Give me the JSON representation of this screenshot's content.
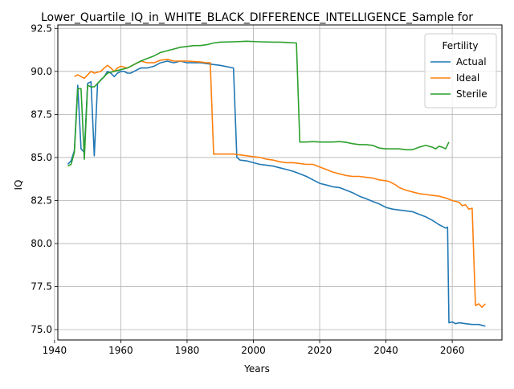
{
  "chart_data": {
    "type": "line",
    "title": "Lower_Quartile_IQ_in_WHITE_BLACK_DIFFERENCE_INTELLIGENCE_Sample for",
    "xlabel": "Years",
    "ylabel": "IQ",
    "xlim": [
      1941,
      2075
    ],
    "ylim": [
      74.4,
      92.7
    ],
    "xticks": [
      1940,
      1960,
      1980,
      2000,
      2020,
      2040,
      2060
    ],
    "yticks": [
      75.0,
      77.5,
      80.0,
      82.5,
      85.0,
      87.5,
      90.0,
      92.5
    ],
    "xtick_labels": [
      "1940",
      "1960",
      "1980",
      "2000",
      "2020",
      "2040",
      "2060"
    ],
    "ytick_labels": [
      "75.0",
      "77.5",
      "80.0",
      "82.5",
      "85.0",
      "87.5",
      "90.0",
      "92.5"
    ],
    "grid": true,
    "legend": {
      "title": "Fertility",
      "position": "upper right"
    },
    "series": [
      {
        "name": "Actual",
        "color": "#1f77b4",
        "points": [
          [
            1944,
            84.6
          ],
          [
            1945,
            84.8
          ],
          [
            1946,
            85.4
          ],
          [
            1947,
            89.2
          ],
          [
            1948,
            85.5
          ],
          [
            1949,
            85.3
          ],
          [
            1950,
            89.3
          ],
          [
            1951,
            89.4
          ],
          [
            1952,
            85.1
          ],
          [
            1953,
            89.3
          ],
          [
            1954,
            89.5
          ],
          [
            1955,
            89.7
          ],
          [
            1956,
            90.0
          ],
          [
            1957,
            89.9
          ],
          [
            1958,
            89.7
          ],
          [
            1959,
            89.9
          ],
          [
            1960,
            90.0
          ],
          [
            1961,
            90.0
          ],
          [
            1962,
            89.9
          ],
          [
            1963,
            89.9
          ],
          [
            1964,
            90.0
          ],
          [
            1965,
            90.1
          ],
          [
            1966,
            90.2
          ],
          [
            1968,
            90.2
          ],
          [
            1970,
            90.3
          ],
          [
            1972,
            90.5
          ],
          [
            1974,
            90.6
          ],
          [
            1976,
            90.5
          ],
          [
            1978,
            90.6
          ],
          [
            1980,
            90.5
          ],
          [
            1984,
            90.5
          ],
          [
            1988,
            90.4
          ],
          [
            1990,
            90.35
          ],
          [
            1994,
            90.2
          ],
          [
            1995,
            85.0
          ],
          [
            1996,
            84.85
          ],
          [
            1998,
            84.8
          ],
          [
            2000,
            84.7
          ],
          [
            2002,
            84.6
          ],
          [
            2004,
            84.55
          ],
          [
            2006,
            84.5
          ],
          [
            2008,
            84.4
          ],
          [
            2010,
            84.3
          ],
          [
            2012,
            84.2
          ],
          [
            2014,
            84.05
          ],
          [
            2016,
            83.9
          ],
          [
            2018,
            83.7
          ],
          [
            2020,
            83.5
          ],
          [
            2022,
            83.4
          ],
          [
            2024,
            83.3
          ],
          [
            2026,
            83.25
          ],
          [
            2028,
            83.1
          ],
          [
            2030,
            82.95
          ],
          [
            2032,
            82.75
          ],
          [
            2034,
            82.6
          ],
          [
            2036,
            82.45
          ],
          [
            2038,
            82.3
          ],
          [
            2040,
            82.1
          ],
          [
            2042,
            82.0
          ],
          [
            2044,
            81.95
          ],
          [
            2046,
            81.9
          ],
          [
            2048,
            81.85
          ],
          [
            2050,
            81.7
          ],
          [
            2052,
            81.55
          ],
          [
            2054,
            81.35
          ],
          [
            2056,
            81.1
          ],
          [
            2057,
            81.0
          ],
          [
            2058,
            80.9
          ],
          [
            2058.6,
            80.95
          ],
          [
            2059,
            75.4
          ],
          [
            2060,
            75.45
          ],
          [
            2061,
            75.35
          ],
          [
            2062,
            75.4
          ],
          [
            2064,
            75.35
          ],
          [
            2066,
            75.3
          ],
          [
            2068,
            75.3
          ],
          [
            2069,
            75.25
          ],
          [
            2070,
            75.2
          ]
        ]
      },
      {
        "name": "Ideal",
        "color": "#ff7f0e",
        "points": [
          [
            1946,
            89.7
          ],
          [
            1947,
            89.8
          ],
          [
            1948,
            89.7
          ],
          [
            1949,
            89.6
          ],
          [
            1950,
            89.8
          ],
          [
            1951,
            90.0
          ],
          [
            1952,
            89.9
          ],
          [
            1953,
            89.95
          ],
          [
            1954,
            90.0
          ],
          [
            1955,
            90.2
          ],
          [
            1956,
            90.35
          ],
          [
            1957,
            90.2
          ],
          [
            1958,
            90.0
          ],
          [
            1959,
            90.2
          ],
          [
            1960,
            90.3
          ],
          [
            1962,
            90.2
          ],
          [
            1964,
            90.4
          ],
          [
            1966,
            90.6
          ],
          [
            1968,
            90.5
          ],
          [
            1970,
            90.5
          ],
          [
            1972,
            90.65
          ],
          [
            1974,
            90.7
          ],
          [
            1976,
            90.6
          ],
          [
            1978,
            90.6
          ],
          [
            1980,
            90.6
          ],
          [
            1984,
            90.55
          ],
          [
            1986,
            90.5
          ],
          [
            1987,
            90.5
          ],
          [
            1988,
            85.2
          ],
          [
            1990,
            85.2
          ],
          [
            1992,
            85.2
          ],
          [
            1994,
            85.2
          ],
          [
            1996,
            85.15
          ],
          [
            1998,
            85.1
          ],
          [
            2000,
            85.05
          ],
          [
            2002,
            85.0
          ],
          [
            2004,
            84.9
          ],
          [
            2006,
            84.85
          ],
          [
            2008,
            84.75
          ],
          [
            2010,
            84.7
          ],
          [
            2012,
            84.7
          ],
          [
            2014,
            84.65
          ],
          [
            2016,
            84.6
          ],
          [
            2018,
            84.6
          ],
          [
            2020,
            84.45
          ],
          [
            2022,
            84.3
          ],
          [
            2024,
            84.15
          ],
          [
            2026,
            84.05
          ],
          [
            2028,
            83.95
          ],
          [
            2030,
            83.9
          ],
          [
            2032,
            83.9
          ],
          [
            2034,
            83.85
          ],
          [
            2036,
            83.8
          ],
          [
            2038,
            83.7
          ],
          [
            2040,
            83.65
          ],
          [
            2041,
            83.6
          ],
          [
            2042,
            83.5
          ],
          [
            2043,
            83.4
          ],
          [
            2044,
            83.25
          ],
          [
            2046,
            83.1
          ],
          [
            2048,
            83.0
          ],
          [
            2050,
            82.9
          ],
          [
            2052,
            82.85
          ],
          [
            2054,
            82.8
          ],
          [
            2056,
            82.75
          ],
          [
            2058,
            82.65
          ],
          [
            2060,
            82.5
          ],
          [
            2062,
            82.4
          ],
          [
            2063,
            82.2
          ],
          [
            2064,
            82.25
          ],
          [
            2065,
            82.0
          ],
          [
            2066,
            82.05
          ],
          [
            2067,
            76.4
          ],
          [
            2068,
            76.5
          ],
          [
            2069,
            76.3
          ],
          [
            2070,
            76.5
          ]
        ]
      },
      {
        "name": "Sterile",
        "color": "#2ca02c",
        "points": [
          [
            1944,
            84.5
          ],
          [
            1945,
            84.6
          ],
          [
            1946,
            85.3
          ],
          [
            1947,
            89.0
          ],
          [
            1948,
            89.0
          ],
          [
            1949,
            84.9
          ],
          [
            1950,
            89.2
          ],
          [
            1951,
            89.1
          ],
          [
            1952,
            89.1
          ],
          [
            1953,
            89.3
          ],
          [
            1954,
            89.5
          ],
          [
            1955,
            89.7
          ],
          [
            1956,
            89.9
          ],
          [
            1957,
            89.95
          ],
          [
            1958,
            90.0
          ],
          [
            1960,
            90.1
          ],
          [
            1962,
            90.2
          ],
          [
            1964,
            90.4
          ],
          [
            1966,
            90.6
          ],
          [
            1968,
            90.75
          ],
          [
            1970,
            90.9
          ],
          [
            1972,
            91.1
          ],
          [
            1974,
            91.2
          ],
          [
            1976,
            91.3
          ],
          [
            1978,
            91.4
          ],
          [
            1980,
            91.45
          ],
          [
            1982,
            91.5
          ],
          [
            1984,
            91.5
          ],
          [
            1986,
            91.55
          ],
          [
            1988,
            91.65
          ],
          [
            1990,
            91.7
          ],
          [
            1994,
            91.72
          ],
          [
            1998,
            91.75
          ],
          [
            2002,
            91.72
          ],
          [
            2006,
            91.7
          ],
          [
            2008,
            91.7
          ],
          [
            2010,
            91.68
          ],
          [
            2013,
            91.65
          ],
          [
            2014,
            85.9
          ],
          [
            2016,
            85.9
          ],
          [
            2018,
            85.92
          ],
          [
            2020,
            85.9
          ],
          [
            2022,
            85.9
          ],
          [
            2024,
            85.9
          ],
          [
            2026,
            85.92
          ],
          [
            2028,
            85.88
          ],
          [
            2030,
            85.8
          ],
          [
            2032,
            85.75
          ],
          [
            2034,
            85.75
          ],
          [
            2036,
            85.7
          ],
          [
            2038,
            85.55
          ],
          [
            2040,
            85.5
          ],
          [
            2042,
            85.5
          ],
          [
            2044,
            85.5
          ],
          [
            2046,
            85.45
          ],
          [
            2048,
            85.45
          ],
          [
            2050,
            85.6
          ],
          [
            2052,
            85.7
          ],
          [
            2054,
            85.6
          ],
          [
            2055,
            85.5
          ],
          [
            2056,
            85.65
          ],
          [
            2057,
            85.6
          ],
          [
            2058,
            85.5
          ],
          [
            2059,
            85.9
          ]
        ]
      }
    ]
  }
}
